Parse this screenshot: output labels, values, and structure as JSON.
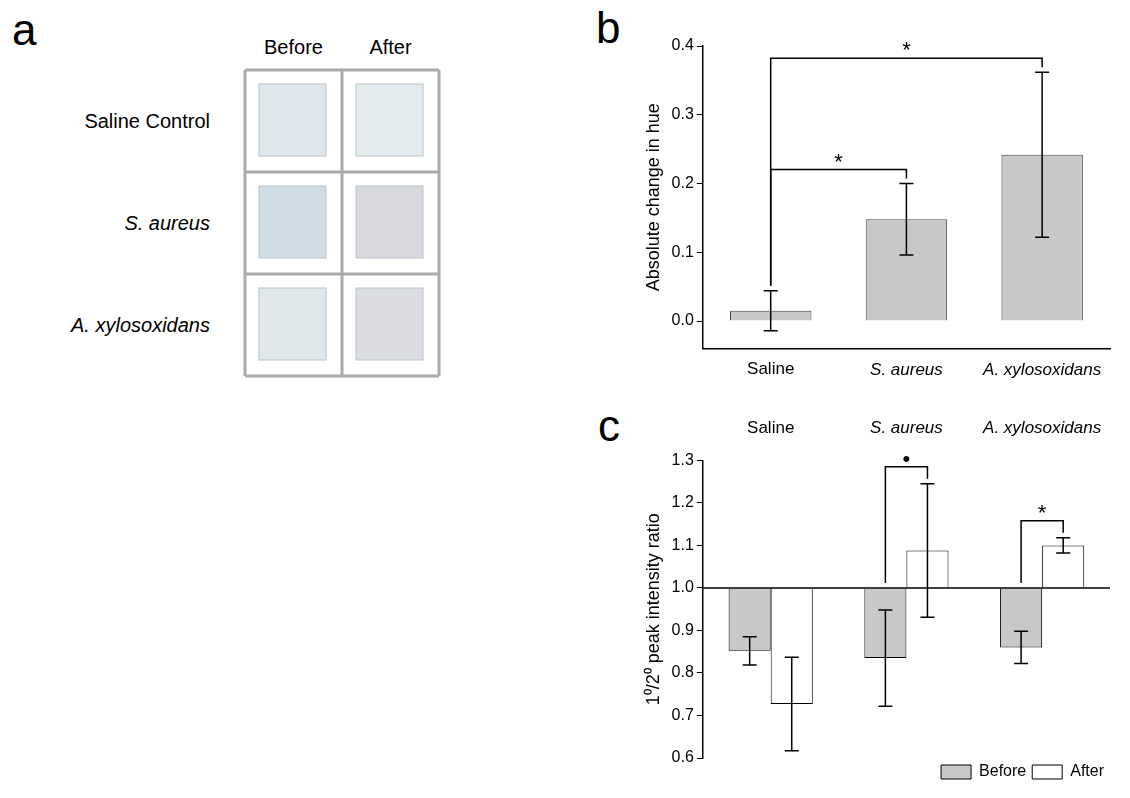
{
  "panel_a": {
    "panel": "a",
    "columns": [
      "Before",
      "After"
    ],
    "rows": [
      {
        "label": "Saline Control",
        "colors": [
          "#dde7eb",
          "#e3ebee"
        ]
      },
      {
        "label": "S. aureus",
        "colors": [
          "#cfdde4",
          "#d8d9df"
        ]
      },
      {
        "label": "A. xylosoxidans",
        "colors": [
          "#e0e8eb",
          "#dcdde2"
        ]
      }
    ]
  },
  "chart_data": [
    {
      "panel": "b",
      "type": "bar",
      "y_label": "Absolute change in hue",
      "categories": [
        "Saline",
        "S. aureus",
        "A. xylosoxidans"
      ],
      "values": [
        0.015,
        0.148,
        0.242
      ],
      "errors": [
        0.029,
        0.052,
        0.12
      ],
      "color": "#c8c8c8",
      "ylim": [
        -0.04,
        0.4
      ],
      "yticks": [
        {
          "value": 0,
          "label": "0.0"
        },
        0.1,
        0.2,
        0.3,
        0.4
      ],
      "grid": false,
      "significance": [
        {
          "from": "Saline",
          "to": "S. aureus",
          "label": "*"
        },
        {
          "from": "Saline",
          "to": "A. xylosoxidans",
          "label": "*"
        }
      ]
    },
    {
      "panel": "c",
      "type": "bar",
      "y_label": "1⁰/2⁰ peak intensity ratio",
      "categories": [
        "Saline",
        "S. aureus",
        "A. xylosoxidans"
      ],
      "base": 1,
      "series": [
        {
          "name": "Before",
          "color": "#c8c8c8",
          "values": [
            0.852,
            0.835,
            0.86
          ],
          "errors": [
            0.033,
            0.113,
            0.038
          ]
        },
        {
          "name": "After",
          "color": "#ffffff",
          "values": [
            0.727,
            1.088,
            1.1
          ],
          "errors": [
            0.11,
            0.157,
            0.018
          ]
        }
      ],
      "ylim": [
        0.6,
        1.3
      ],
      "yticks": [
        0.6,
        0.7,
        0.8,
        0.9,
        {
          "value": 1,
          "label": "1.0"
        },
        1.1,
        1.2,
        1.3
      ],
      "grid": false,
      "legend": "bottom-right",
      "significance": [
        {
          "category": "S. aureus",
          "label": "•"
        },
        {
          "category": "A. xylosoxidans",
          "label": "*"
        }
      ]
    }
  ]
}
